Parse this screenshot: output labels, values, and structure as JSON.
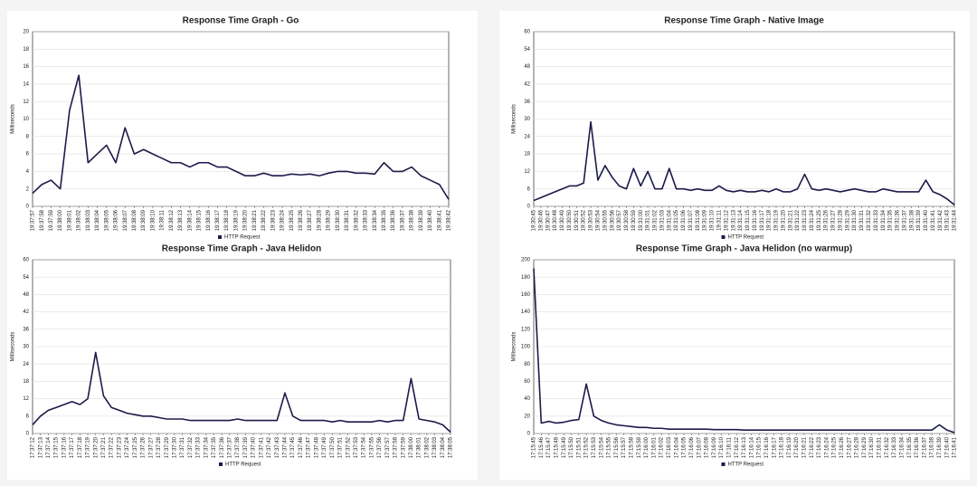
{
  "chart_data": [
    {
      "type": "line",
      "title": "Response Time Graph - Go",
      "y_label": "Milliseconds",
      "categories": [
        "19:37:57",
        "19:37:58",
        "19:37:59",
        "19:38:00",
        "19:38:01",
        "19:38:02",
        "19:38:03",
        "19:38:04",
        "19:38:05",
        "19:38:06",
        "19:38:07",
        "19:38:08",
        "19:38:09",
        "19:38:10",
        "19:38:11",
        "19:38:12",
        "19:38:13",
        "19:38:14",
        "19:38:15",
        "19:38:16",
        "19:38:17",
        "19:38:18",
        "19:38:19",
        "19:38:20",
        "19:38:21",
        "19:38:22",
        "19:38:23",
        "19:38:24",
        "19:38:25",
        "19:38:26",
        "19:38:27",
        "19:38:28",
        "19:38:29",
        "19:38:30",
        "19:38:31",
        "19:38:32",
        "19:38:33",
        "19:38:34",
        "19:38:35",
        "19:38:36",
        "19:38:37",
        "19:38:38",
        "19:38:39",
        "19:38:40",
        "19:38:41",
        "19:38:42"
      ],
      "series": [
        {
          "name": "HTTP Request",
          "color": "#1b1b4a",
          "values": [
            1.5,
            2.5,
            3,
            2,
            11,
            15,
            5,
            6,
            7,
            5,
            9,
            6,
            6.5,
            6,
            5.5,
            5,
            5,
            4.5,
            5,
            5,
            4.5,
            4.5,
            4,
            3.5,
            3.5,
            3.8,
            3.5,
            3.5,
            3.7,
            3.6,
            3.7,
            3.5,
            3.8,
            4,
            4,
            3.8,
            3.8,
            3.7,
            5,
            4,
            4,
            4.5,
            3.5,
            3,
            2.5,
            0.8
          ]
        }
      ],
      "ylim": [
        0,
        20
      ],
      "yticks": [
        0,
        2,
        4,
        6,
        8,
        10,
        12,
        14,
        16,
        18,
        20
      ],
      "grid": true
    },
    {
      "type": "line",
      "title": "Response Time Graph - Native Image",
      "y_label": "Milliseconds",
      "categories": [
        "19:30:45",
        "19:30:46",
        "19:30:47",
        "19:30:48",
        "19:30:49",
        "19:30:50",
        "19:30:51",
        "19:30:52",
        "19:30:53",
        "19:30:54",
        "19:30:55",
        "19:30:56",
        "19:30:57",
        "19:30:58",
        "19:30:59",
        "19:31:00",
        "19:31:01",
        "19:31:02",
        "19:31:03",
        "19:31:04",
        "19:31:05",
        "19:31:06",
        "19:31:07",
        "19:31:08",
        "19:31:09",
        "19:31:10",
        "19:31:11",
        "19:31:12",
        "19:31:13",
        "19:31:14",
        "19:31:15",
        "19:31:16",
        "19:31:17",
        "19:31:18",
        "19:31:19",
        "19:31:20",
        "19:31:21",
        "19:31:22",
        "19:31:23",
        "19:31:24",
        "19:31:25",
        "19:31:26",
        "19:31:27",
        "19:31:28",
        "19:31:29",
        "19:31:30",
        "19:31:31",
        "19:31:32",
        "19:31:33",
        "19:31:34",
        "19:31:35",
        "19:31:36",
        "19:31:37",
        "19:31:38",
        "19:31:39",
        "19:31:40",
        "19:31:41",
        "19:31:42",
        "19:31:43",
        "19:31:44"
      ],
      "series": [
        {
          "name": "HTTP Request",
          "color": "#1b1b4a",
          "values": [
            2,
            3,
            4,
            5,
            6,
            7,
            7,
            8,
            29,
            9,
            14,
            10,
            7,
            6,
            13,
            7,
            12,
            6,
            6,
            13,
            6,
            6,
            5.5,
            6,
            5.5,
            5.5,
            7,
            5.5,
            5,
            5.5,
            5,
            5,
            5.5,
            5,
            6,
            5,
            5,
            6,
            11,
            6,
            5.5,
            6,
            5.5,
            5,
            5.5,
            6,
            5.5,
            5,
            5,
            6,
            5.5,
            5,
            5,
            5,
            5,
            9,
            5,
            4,
            2.5,
            0.5
          ]
        }
      ],
      "ylim": [
        0,
        60
      ],
      "yticks": [
        0,
        6,
        12,
        18,
        24,
        30,
        36,
        42,
        48,
        54,
        60
      ],
      "grid": true
    },
    {
      "type": "line",
      "title": "Response Time Graph - Java Helidon",
      "y_label": "Milliseconds",
      "categories": [
        "17:37:12",
        "17:37:13",
        "17:37:14",
        "17:37:15",
        "17:37:16",
        "17:37:17",
        "17:37:18",
        "17:37:19",
        "17:37:20",
        "17:37:21",
        "17:37:22",
        "17:37:23",
        "17:37:24",
        "17:37:25",
        "17:37:26",
        "17:37:27",
        "17:37:28",
        "17:37:29",
        "17:37:30",
        "17:37:31",
        "17:37:32",
        "17:37:33",
        "17:37:34",
        "17:37:35",
        "17:37:36",
        "17:37:37",
        "17:37:38",
        "17:37:39",
        "17:37:40",
        "17:37:41",
        "17:37:42",
        "17:37:43",
        "17:37:44",
        "17:37:45",
        "17:37:46",
        "17:37:47",
        "17:37:48",
        "17:37:49",
        "17:37:50",
        "17:37:51",
        "17:37:52",
        "17:37:53",
        "17:37:54",
        "17:37:55",
        "17:37:56",
        "17:37:57",
        "17:37:58",
        "17:37:59",
        "17:38:00",
        "17:38:01",
        "17:38:02",
        "17:38:03",
        "17:38:04",
        "17:38:05"
      ],
      "series": [
        {
          "name": "HTTP Request",
          "color": "#1b1b4a",
          "values": [
            3,
            6,
            8,
            9,
            10,
            11,
            10,
            12,
            28,
            13,
            9,
            8,
            7,
            6.5,
            6,
            6,
            5.5,
            5,
            5,
            5,
            4.5,
            4.5,
            4.5,
            4.5,
            4.5,
            4.5,
            5,
            4.5,
            4.5,
            4.5,
            4.5,
            4.5,
            14,
            6,
            4.5,
            4.5,
            4.5,
            4.5,
            4,
            4.5,
            4,
            4,
            4,
            4,
            4.5,
            4,
            4.5,
            4.5,
            19,
            5,
            4.5,
            4,
            3,
            0.5
          ]
        }
      ],
      "ylim": [
        0,
        60
      ],
      "yticks": [
        0,
        6,
        12,
        18,
        24,
        30,
        36,
        42,
        48,
        54,
        60
      ],
      "grid": true
    },
    {
      "type": "line",
      "title": "Response Time Graph - Java Helidon (no warmup)",
      "y_label": "Milliseconds",
      "categories": [
        "17:15:45",
        "17:15:46",
        "17:15:47",
        "17:15:48",
        "17:15:49",
        "17:15:50",
        "17:15:51",
        "17:15:52",
        "17:15:53",
        "17:15:54",
        "17:15:55",
        "17:15:56",
        "17:15:57",
        "17:15:58",
        "17:15:59",
        "17:16:00",
        "17:16:01",
        "17:16:02",
        "17:16:03",
        "17:16:04",
        "17:16:05",
        "17:16:06",
        "17:16:07",
        "17:16:08",
        "17:16:09",
        "17:16:10",
        "17:16:11",
        "17:16:12",
        "17:16:13",
        "17:16:14",
        "17:16:15",
        "17:16:16",
        "17:16:17",
        "17:16:18",
        "17:16:19",
        "17:16:20",
        "17:16:21",
        "17:16:22",
        "17:16:23",
        "17:16:24",
        "17:16:25",
        "17:16:26",
        "17:16:27",
        "17:16:28",
        "17:16:29",
        "17:16:30",
        "17:16:31",
        "17:16:32",
        "17:16:33",
        "17:16:34",
        "17:16:35",
        "17:16:36",
        "17:16:37",
        "17:16:38",
        "17:16:39",
        "17:16:40",
        "17:16:41"
      ],
      "series": [
        {
          "name": "HTTP Request",
          "color": "#1b1b4a",
          "values": [
            190,
            12,
            14,
            12,
            13,
            15,
            16,
            57,
            20,
            15,
            12,
            10,
            9,
            8,
            7,
            7,
            6,
            6,
            5,
            5,
            5,
            5,
            5,
            5,
            4.5,
            4.5,
            4.5,
            4.5,
            4,
            4,
            4,
            4,
            4,
            4,
            4,
            4,
            4,
            4,
            4,
            4,
            4,
            4,
            4,
            4,
            4,
            4,
            4,
            4,
            4,
            4,
            4,
            4,
            4,
            4,
            10,
            4,
            1
          ]
        }
      ],
      "ylim": [
        0,
        200
      ],
      "yticks": [
        0,
        20,
        40,
        60,
        80,
        100,
        120,
        140,
        160,
        180,
        200
      ],
      "grid": true
    }
  ]
}
